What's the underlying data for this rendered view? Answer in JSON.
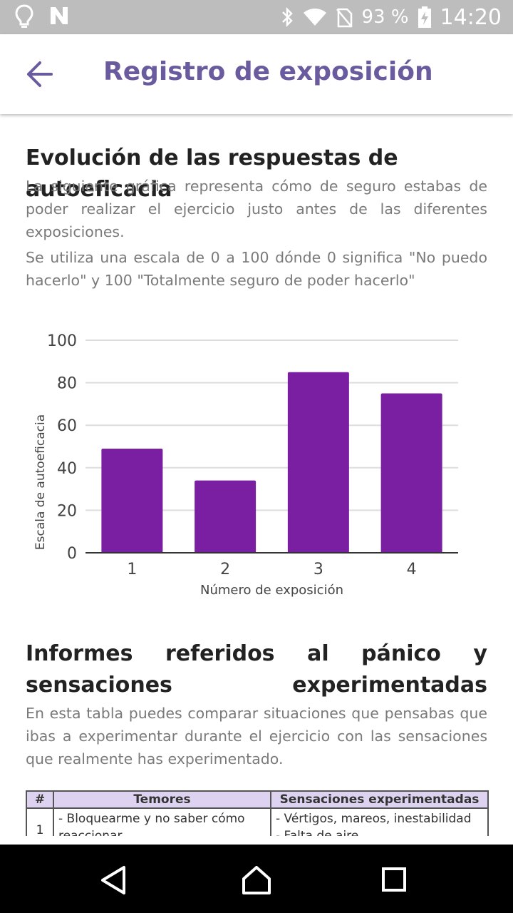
{
  "status_bar": {
    "battery": "93 %",
    "time": "14:20"
  },
  "app_bar": {
    "title": "Registro de exposición"
  },
  "section1": {
    "title": "Evolución de las respuestas de autoeficacia",
    "paragraph1": "La siguiente gráfica representa cómo de seguro estabas de poder realizar el ejercicio justo antes de las diferentes exposiciones.",
    "paragraph2": "Se utiliza una escala de 0 a 100 dónde 0 significa \"No puedo hacerlo\" y 100 \"Totalmente seguro de poder hacerlo\""
  },
  "chart_data": {
    "type": "bar",
    "categories": [
      "1",
      "2",
      "3",
      "4"
    ],
    "values": [
      49,
      34,
      85,
      75
    ],
    "title": "",
    "xlabel": "Número de exposición",
    "ylabel": "Escala de autoeficacia",
    "ylim": [
      0,
      100
    ],
    "yticks": [
      "0",
      "20",
      "40",
      "60",
      "80",
      "100"
    ],
    "grid": true,
    "bar_color": "#7b1fa2"
  },
  "section2": {
    "title": "Informes referidos al pánico y sensaciones experimentadas",
    "paragraph": "En esta tabla puedes comparar situaciones que pensabas que ibas a experimentar durante el ejercicio con las sensaciones que realmente has experimentado."
  },
  "table": {
    "headers": [
      "#",
      "Temores",
      "Sensaciones experimentadas"
    ],
    "rows": [
      {
        "num": "1",
        "temores": "- Bloquearme y no saber cómo reaccionar",
        "sensaciones": "- Vértigos, mareos, inestabilidad\n- Falta de aire"
      }
    ]
  },
  "colors": {
    "accent": "#6a5a9e",
    "bar": "#7b1fa2",
    "table_header": "#ddd3f0"
  }
}
